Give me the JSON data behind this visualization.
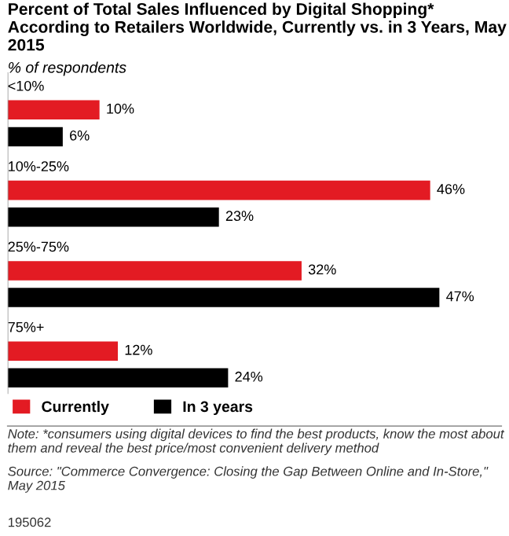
{
  "chart_data": {
    "type": "bar",
    "orientation": "horizontal",
    "title": "Percent of Total Sales Influenced by Digital Shopping* According to Retailers Worldwide, Currently vs. in 3 Years, May 2015",
    "subtitle": "% of respondents",
    "categories": [
      "<10%",
      "10%-25%",
      "25%-75%",
      "75%+"
    ],
    "series": [
      {
        "name": "Currently",
        "color": "#e31b23",
        "values": [
          10,
          46,
          32,
          12
        ],
        "value_labels": [
          "10%",
          "46%",
          "32%",
          "12%"
        ]
      },
      {
        "name": "In 3 years",
        "color": "#000000",
        "values": [
          6,
          23,
          47,
          24
        ],
        "value_labels": [
          "6%",
          "23%",
          "47%",
          "24%"
        ]
      }
    ],
    "legend": "bottom",
    "annotations": [
      "Note: *consumers using digital devices to find the best products, know the most about them and reveal the best price/most convenient delivery method",
      "Source: \"Commerce Convergence: Closing the Gap Between Online and In-Store,\" May 2015",
      "195062"
    ]
  }
}
